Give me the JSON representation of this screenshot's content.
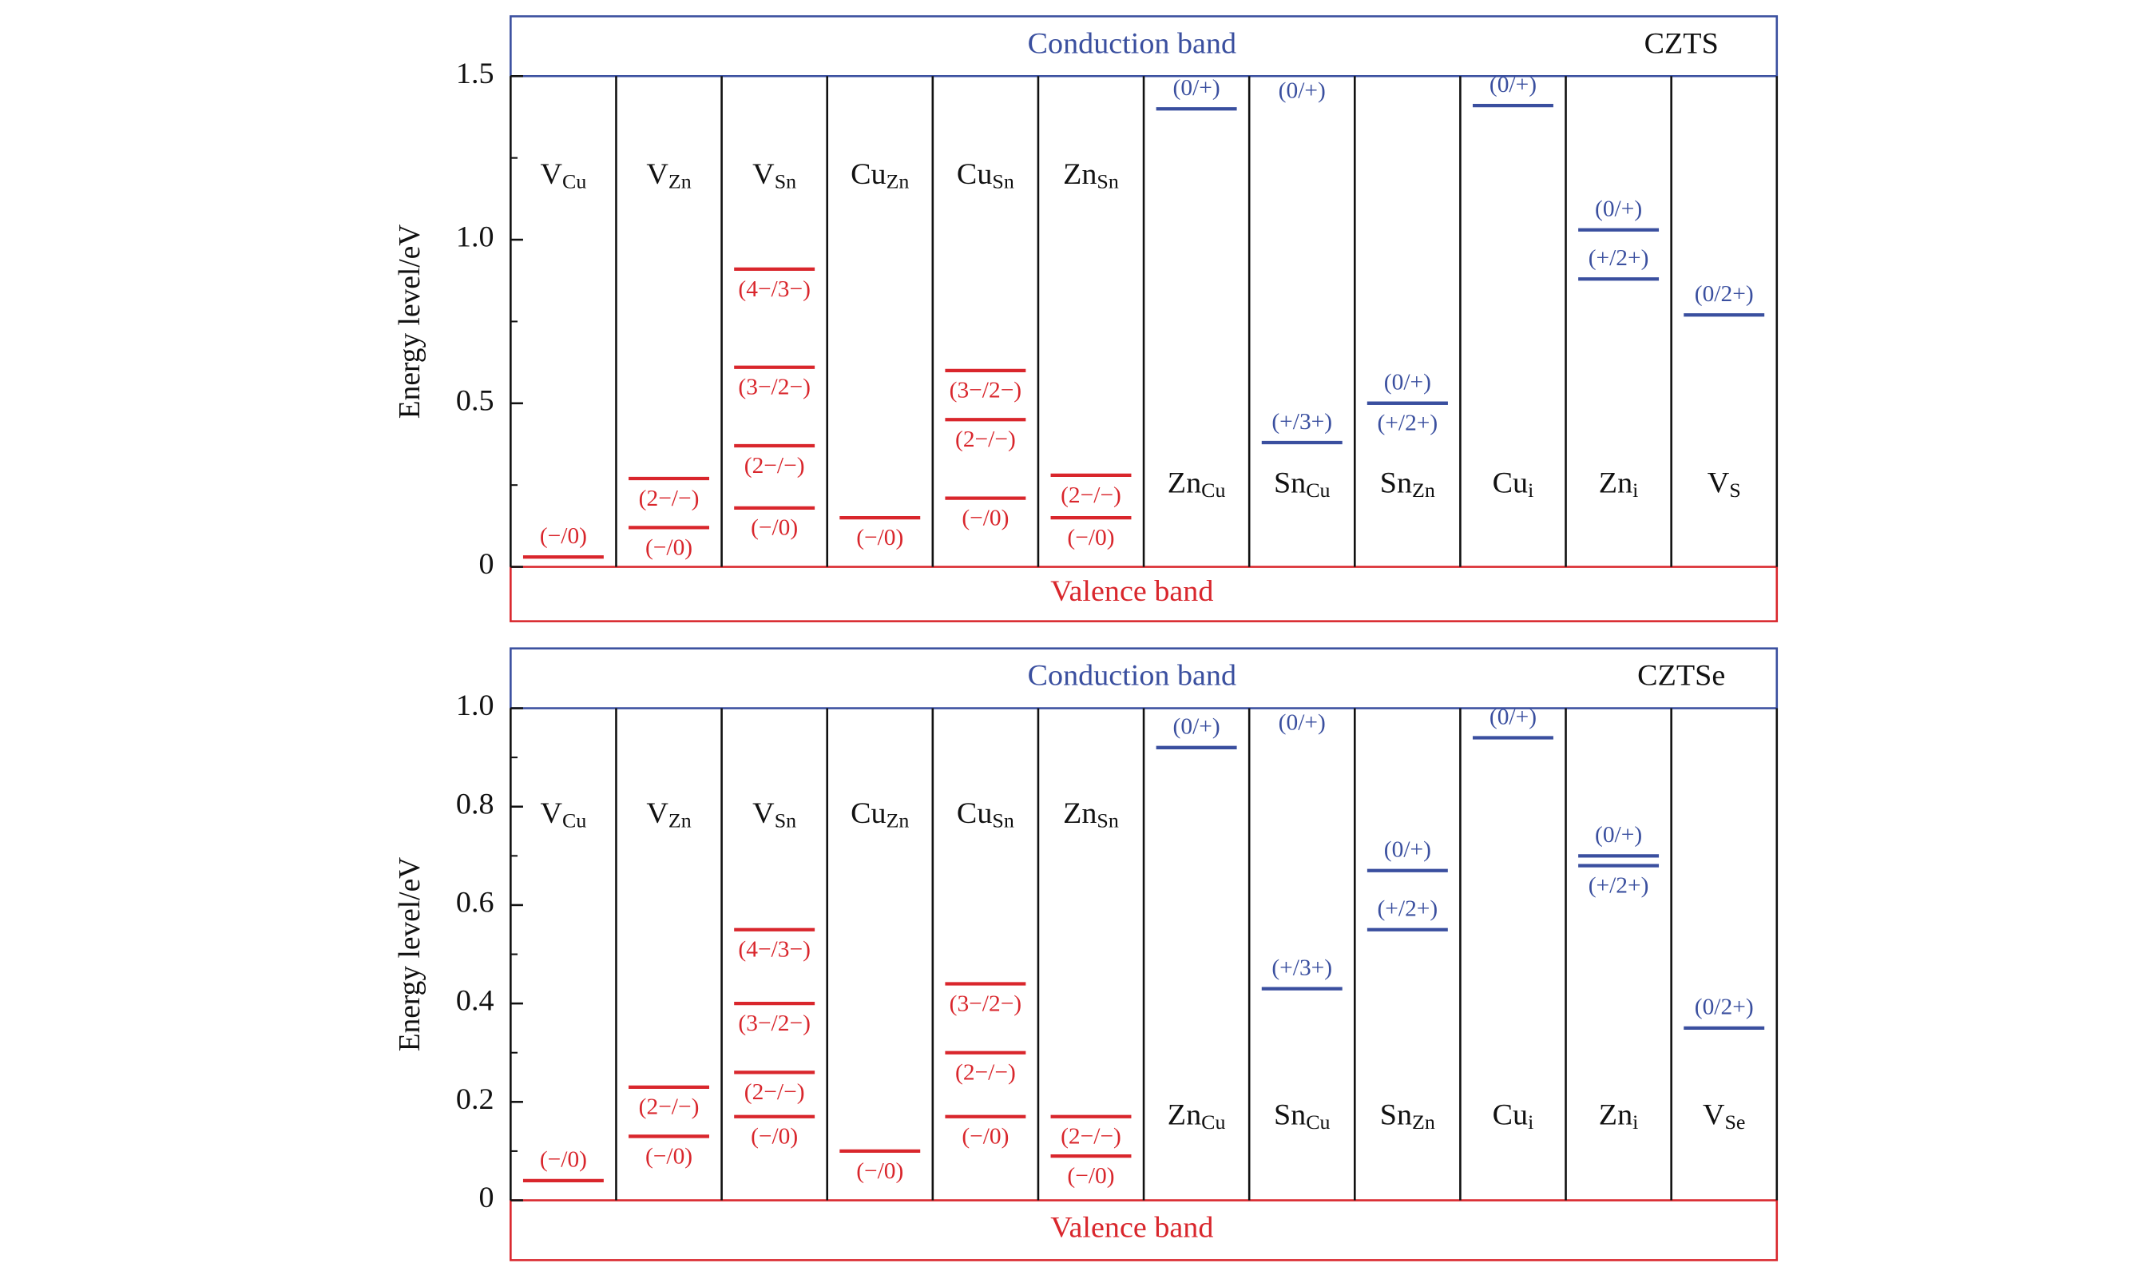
{
  "chart_data": [
    {
      "type": "energy-level",
      "title": "CZTS",
      "conduction_label": "Conduction band",
      "valence_label": "Valence band",
      "ylabel": "Energy level/eV",
      "ylim": [
        0,
        1.5
      ],
      "yticks": [
        0,
        0.5,
        {
          "value": 1,
          "label": "1.0"
        },
        1.5
      ],
      "minor_yticks": [
        0.25,
        0.75,
        1.25
      ],
      "conduction_color": "#3a4f9f",
      "valence_color": "#d9262c",
      "defects": [
        {
          "name": {
            "base": "V",
            "sub": "Cu"
          },
          "name_pos": "top",
          "color": "#d9262c",
          "levels": [
            {
              "value": 0.03,
              "label": "(−/0)",
              "side": "above"
            }
          ]
        },
        {
          "name": {
            "base": "V",
            "sub": "Zn"
          },
          "name_pos": "top",
          "color": "#d9262c",
          "levels": [
            {
              "value": 0.27,
              "label": "(2−/−)",
              "side": "below"
            },
            {
              "value": 0.12,
              "label": "(−/0)",
              "side": "below"
            }
          ]
        },
        {
          "name": {
            "base": "V",
            "sub": "Sn"
          },
          "name_pos": "top",
          "color": "#d9262c",
          "levels": [
            {
              "value": 0.91,
              "label": "(4−/3−)",
              "side": "below"
            },
            {
              "value": 0.61,
              "label": "(3−/2−)",
              "side": "below"
            },
            {
              "value": 0.37,
              "label": "(2−/−)",
              "side": "below"
            },
            {
              "value": 0.18,
              "label": "(−/0)",
              "side": "below"
            }
          ]
        },
        {
          "name": {
            "base": "Cu",
            "sub": "Zn"
          },
          "name_pos": "top",
          "color": "#d9262c",
          "levels": [
            {
              "value": 0.15,
              "label": "(−/0)",
              "side": "below"
            }
          ]
        },
        {
          "name": {
            "base": "Cu",
            "sub": "Sn"
          },
          "name_pos": "top",
          "color": "#d9262c",
          "levels": [
            {
              "value": 0.6,
              "label": "(3−/2−)",
              "side": "below"
            },
            {
              "value": 0.45,
              "label": "(2−/−)",
              "side": "below"
            },
            {
              "value": 0.21,
              "label": "(−/0)",
              "side": "below"
            }
          ]
        },
        {
          "name": {
            "base": "Zn",
            "sub": "Sn"
          },
          "name_pos": "top",
          "color": "#d9262c",
          "levels": [
            {
              "value": 0.28,
              "label": "(2−/−)",
              "side": "below"
            },
            {
              "value": 0.15,
              "label": "(−/0)",
              "side": "below"
            }
          ]
        },
        {
          "name": {
            "base": "Zn",
            "sub": "Cu"
          },
          "name_pos": "bottom",
          "color": "#3a4f9f",
          "levels": [
            {
              "value": 1.4,
              "label": "(0/+)",
              "side": "above"
            }
          ]
        },
        {
          "name": {
            "base": "Sn",
            "sub": "Cu"
          },
          "name_pos": "bottom",
          "color": "#3a4f9f",
          "levels": [
            {
              "value": null,
              "label": "(0/+)",
              "side": "above"
            },
            {
              "value": 0.38,
              "label": "(+/3+)",
              "side": "above"
            }
          ]
        },
        {
          "name": {
            "base": "Sn",
            "sub": "Zn"
          },
          "name_pos": "bottom",
          "color": "#3a4f9f",
          "levels": [
            {
              "value": 0.5,
              "label": "(0/+)",
              "side": "above"
            },
            {
              "value": 0.5,
              "label": "(+/2+)",
              "side": "below"
            }
          ]
        },
        {
          "name": {
            "base": "Cu",
            "sub": "i"
          },
          "name_pos": "bottom",
          "color": "#3a4f9f",
          "levels": [
            {
              "value": 1.41,
              "label": "(0/+)",
              "side": "above"
            }
          ]
        },
        {
          "name": {
            "base": "Zn",
            "sub": "i"
          },
          "name_pos": "bottom",
          "color": "#3a4f9f",
          "levels": [
            {
              "value": 1.03,
              "label": "(0/+)",
              "side": "above"
            },
            {
              "value": 0.88,
              "label": "(+/2+)",
              "side": "above"
            }
          ]
        },
        {
          "name": {
            "base": "V",
            "sub": "S"
          },
          "name_pos": "bottom",
          "color": "#3a4f9f",
          "levels": [
            {
              "value": 0.77,
              "label": "(0/2+)",
              "side": "above"
            }
          ]
        }
      ]
    },
    {
      "type": "energy-level",
      "title": "CZTSe",
      "conduction_label": "Conduction band",
      "valence_label": "Valence band",
      "ylabel": "Energy level/eV",
      "ylim": [
        0,
        1.0
      ],
      "yticks": [
        0,
        0.2,
        0.4,
        0.6,
        0.8,
        {
          "value": 1,
          "label": "1.0"
        }
      ],
      "minor_yticks": [
        0.1,
        0.3,
        0.5,
        0.7,
        0.9
      ],
      "conduction_color": "#3a4f9f",
      "valence_color": "#d9262c",
      "defects": [
        {
          "name": {
            "base": "V",
            "sub": "Cu"
          },
          "name_pos": "top",
          "color": "#d9262c",
          "levels": [
            {
              "value": 0.04,
              "label": "(−/0)",
              "side": "above"
            }
          ]
        },
        {
          "name": {
            "base": "V",
            "sub": "Zn"
          },
          "name_pos": "top",
          "color": "#d9262c",
          "levels": [
            {
              "value": 0.23,
              "label": "(2−/−)",
              "side": "below"
            },
            {
              "value": 0.13,
              "label": "(−/0)",
              "side": "below"
            }
          ]
        },
        {
          "name": {
            "base": "V",
            "sub": "Sn"
          },
          "name_pos": "top",
          "color": "#d9262c",
          "levels": [
            {
              "value": 0.55,
              "label": "(4−/3−)",
              "side": "below"
            },
            {
              "value": 0.4,
              "label": "(3−/2−)",
              "side": "below"
            },
            {
              "value": 0.26,
              "label": "(2−/−)",
              "side": "below"
            },
            {
              "value": 0.17,
              "label": "(−/0)",
              "side": "below"
            }
          ]
        },
        {
          "name": {
            "base": "Cu",
            "sub": "Zn"
          },
          "name_pos": "top",
          "color": "#d9262c",
          "levels": [
            {
              "value": 0.1,
              "label": "(−/0)",
              "side": "below"
            }
          ]
        },
        {
          "name": {
            "base": "Cu",
            "sub": "Sn"
          },
          "name_pos": "top",
          "color": "#d9262c",
          "levels": [
            {
              "value": 0.44,
              "label": "(3−/2−)",
              "side": "below"
            },
            {
              "value": 0.3,
              "label": "(2−/−)",
              "side": "below"
            },
            {
              "value": 0.17,
              "label": "(−/0)",
              "side": "below"
            }
          ]
        },
        {
          "name": {
            "base": "Zn",
            "sub": "Sn"
          },
          "name_pos": "top",
          "color": "#d9262c",
          "levels": [
            {
              "value": 0.17,
              "label": "(2−/−)",
              "side": "below"
            },
            {
              "value": 0.09,
              "label": "(−/0)",
              "side": "below"
            }
          ]
        },
        {
          "name": {
            "base": "Zn",
            "sub": "Cu"
          },
          "name_pos": "bottom",
          "color": "#3a4f9f",
          "levels": [
            {
              "value": 0.92,
              "label": "(0/+)",
              "side": "above"
            }
          ]
        },
        {
          "name": {
            "base": "Sn",
            "sub": "Cu"
          },
          "name_pos": "bottom",
          "color": "#3a4f9f",
          "levels": [
            {
              "value": null,
              "label": "(0/+)",
              "side": "above"
            },
            {
              "value": 0.43,
              "label": "(+/3+)",
              "side": "above"
            }
          ]
        },
        {
          "name": {
            "base": "Sn",
            "sub": "Zn"
          },
          "name_pos": "bottom",
          "color": "#3a4f9f",
          "levels": [
            {
              "value": 0.67,
              "label": "(0/+)",
              "side": "above"
            },
            {
              "value": 0.55,
              "label": "(+/2+)",
              "side": "above"
            }
          ]
        },
        {
          "name": {
            "base": "Cu",
            "sub": "i"
          },
          "name_pos": "bottom",
          "color": "#3a4f9f",
          "levels": [
            {
              "value": 0.94,
              "label": "(0/+)",
              "side": "above"
            }
          ]
        },
        {
          "name": {
            "base": "Zn",
            "sub": "i"
          },
          "name_pos": "bottom",
          "color": "#3a4f9f",
          "levels": [
            {
              "value": 0.7,
              "label": "(0/+)",
              "side": "above"
            },
            {
              "value": 0.68,
              "label": "(+/2+)",
              "side": "below"
            }
          ]
        },
        {
          "name": {
            "base": "V",
            "sub": "Se"
          },
          "name_pos": "bottom",
          "color": "#3a4f9f",
          "levels": [
            {
              "value": 0.35,
              "label": "(0/2+)",
              "side": "above"
            }
          ]
        }
      ]
    }
  ]
}
